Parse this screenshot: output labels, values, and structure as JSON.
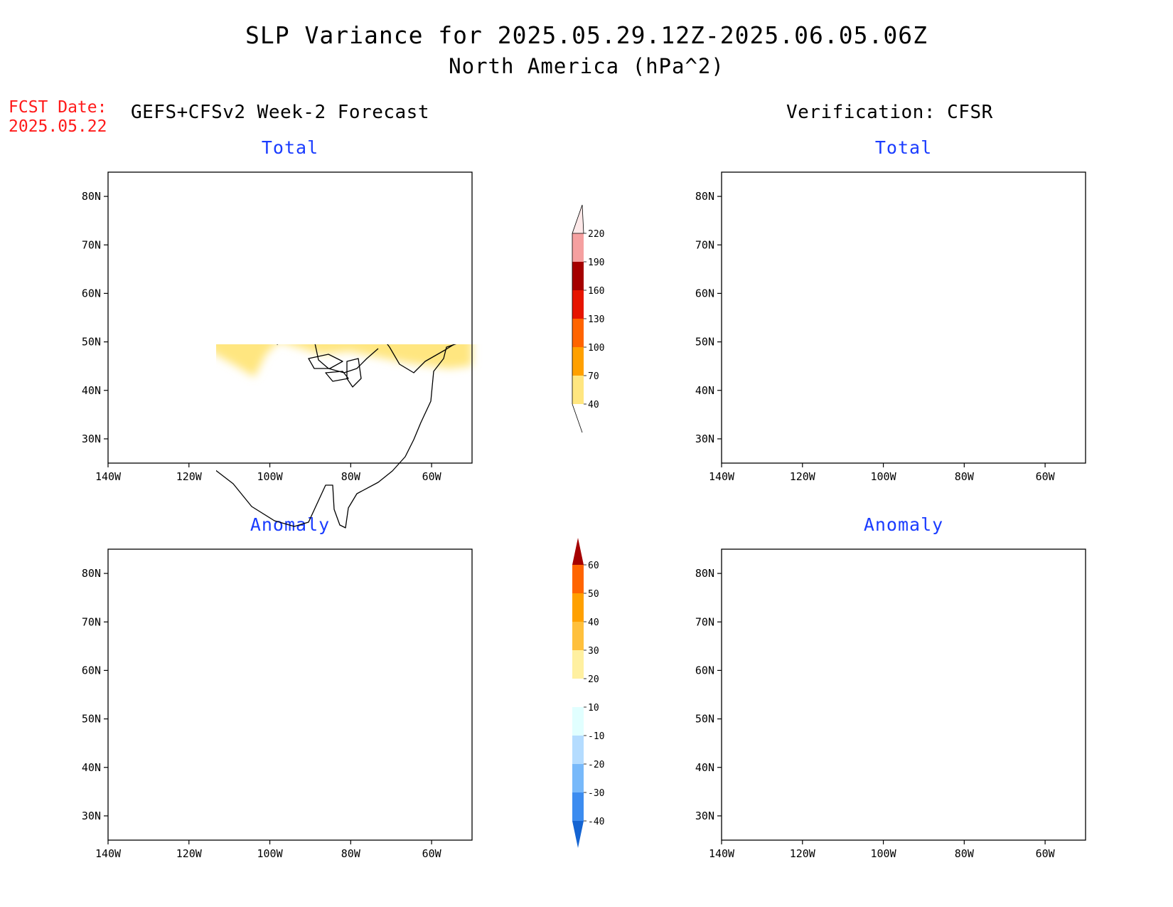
{
  "header": {
    "title": "SLP Variance for 2025.05.29.12Z-2025.06.05.06Z",
    "subtitle": "North America (hPa^2)",
    "fcst_date_label": "FCST Date:",
    "fcst_date_value": "2025.05.22",
    "left_column_title": "GEFS+CFSv2 Week-2 Forecast",
    "right_column_title": "Verification: CFSR"
  },
  "panels": [
    {
      "title": "Total"
    },
    {
      "title": "Total"
    },
    {
      "title": "Anomaly"
    },
    {
      "title": "Anomaly"
    }
  ],
  "axes": {
    "lat_labels": [
      "80N",
      "70N",
      "60N",
      "50N",
      "40N",
      "30N"
    ],
    "lat_values": [
      80,
      70,
      60,
      50,
      40,
      30
    ],
    "lon_labels": [
      "140W",
      "120W",
      "100W",
      "80W",
      "60W"
    ],
    "lon_values": [
      -140,
      -120,
      -100,
      -80,
      -60
    ],
    "lat_range": [
      25,
      85
    ],
    "lon_range": [
      -140,
      -50
    ]
  },
  "colorbars": {
    "total": {
      "labels": [
        "40",
        "70",
        "100",
        "130",
        "160",
        "190",
        "220"
      ],
      "colors": [
        "#ffe680",
        "#ffa000",
        "#ff6400",
        "#e61400",
        "#a50000",
        "#f5a0a0",
        "#fde8e8"
      ]
    },
    "anomaly": {
      "labels": [
        "-40",
        "-30",
        "-20",
        "-10",
        "10",
        "20",
        "30",
        "40",
        "50",
        "60"
      ],
      "colors": [
        "#1464d2",
        "#3c8cf0",
        "#78b9fa",
        "#b4dcff",
        "#e1ffff",
        "#ffffff",
        "#fff0a0",
        "#ffc03c",
        "#ffa000",
        "#ff6400",
        "#e11400",
        "#a50000"
      ]
    }
  }
}
